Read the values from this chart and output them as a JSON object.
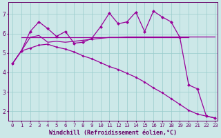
{
  "xlabel": "Windchill (Refroidissement éolien,°C)",
  "bg_color": "#cce8e8",
  "line_color": "#990099",
  "grid_color": "#99cccc",
  "xlim": [
    -0.5,
    23.3
  ],
  "ylim": [
    1.5,
    7.6
  ],
  "xticks": [
    0,
    1,
    2,
    3,
    4,
    5,
    6,
    7,
    8,
    9,
    10,
    11,
    12,
    13,
    14,
    15,
    16,
    17,
    18,
    19,
    20,
    21,
    22,
    23
  ],
  "yticks": [
    2,
    3,
    4,
    5,
    6,
    7
  ],
  "line1_x": [
    0,
    1,
    2,
    3,
    4,
    5,
    6,
    7,
    8,
    9,
    10,
    11,
    12,
    13,
    14,
    15,
    16,
    17,
    18,
    19,
    20,
    21,
    22,
    23
  ],
  "line1_y": [
    4.45,
    5.1,
    5.25,
    5.4,
    5.45,
    5.3,
    5.2,
    5.05,
    4.85,
    4.7,
    4.5,
    4.3,
    4.15,
    3.95,
    3.75,
    3.5,
    3.2,
    2.95,
    2.65,
    2.35,
    2.05,
    1.85,
    1.75,
    1.65
  ],
  "line2_x": [
    0,
    1,
    2,
    3,
    4,
    5,
    6,
    7,
    8,
    9,
    10,
    11,
    12,
    13,
    14,
    15,
    16,
    17,
    18,
    19,
    20,
    21,
    22,
    23
  ],
  "line2_y": [
    4.45,
    5.1,
    6.1,
    6.6,
    6.25,
    5.85,
    6.1,
    5.5,
    5.55,
    5.75,
    6.35,
    7.05,
    6.5,
    6.6,
    7.1,
    6.1,
    7.15,
    6.85,
    6.6,
    5.8,
    3.35,
    3.15,
    1.75,
    1.65
  ],
  "line3_x": [
    1,
    2,
    3,
    4,
    5,
    6,
    7,
    8,
    9,
    10,
    11,
    12,
    13,
    14,
    15,
    16,
    17,
    18,
    19,
    20
  ],
  "line3_y": [
    5.8,
    5.8,
    5.8,
    5.8,
    5.8,
    5.8,
    5.8,
    5.8,
    5.8,
    5.8,
    5.8,
    5.8,
    5.8,
    5.8,
    5.8,
    5.8,
    5.8,
    5.8,
    5.8,
    5.8
  ],
  "line4_x": [
    0,
    1,
    2,
    3,
    4,
    5,
    6,
    7,
    8,
    9,
    10,
    11,
    12,
    13,
    14,
    15,
    16,
    17,
    18,
    19,
    20,
    21,
    22,
    23
  ],
  "line4_y": [
    4.45,
    5.1,
    5.8,
    5.9,
    5.55,
    5.6,
    5.55,
    5.6,
    5.65,
    5.7,
    5.75,
    5.8,
    5.8,
    5.82,
    5.82,
    5.82,
    5.82,
    5.82,
    5.82,
    5.82,
    5.82,
    5.82,
    5.82,
    5.82
  ],
  "marker": "D",
  "markersize": 2.0,
  "linewidth": 0.9,
  "tick_fontsize": 5.2,
  "xlabel_fontsize": 6.0,
  "font_color": "#660066"
}
